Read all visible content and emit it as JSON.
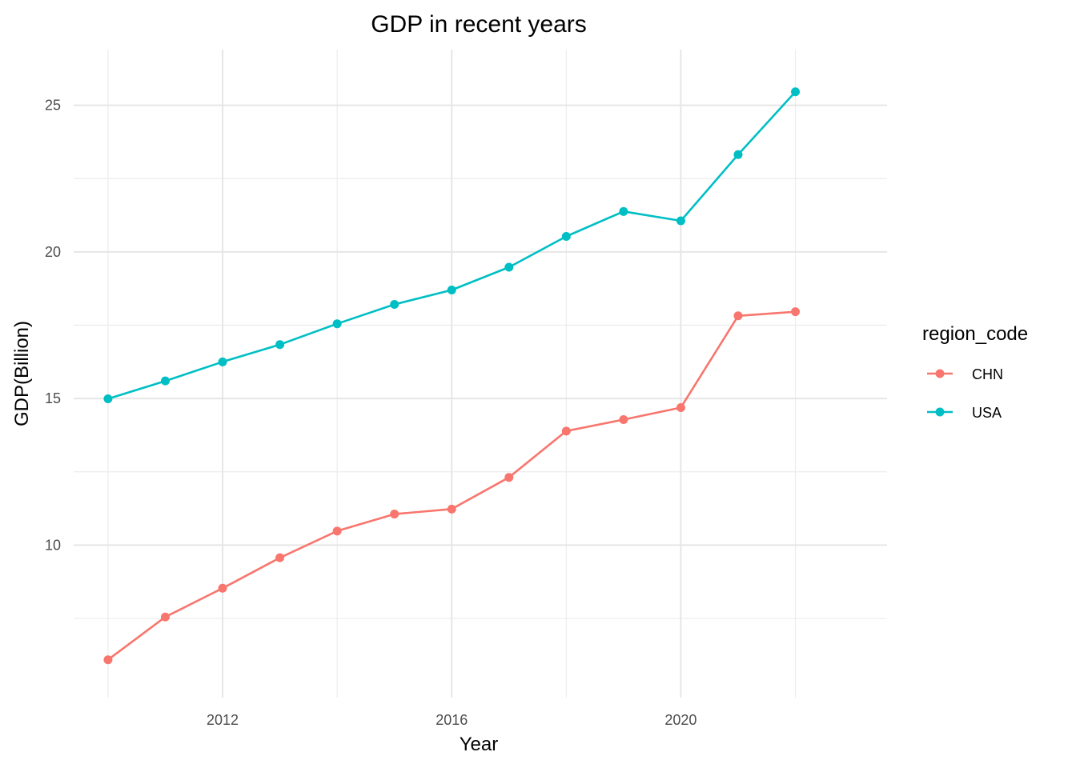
{
  "chart_data": {
    "type": "line",
    "title": "GDP in recent years",
    "xlabel": "Year",
    "ylabel": "GDP(Billion)",
    "x": [
      2010,
      2011,
      2012,
      2013,
      2014,
      2015,
      2016,
      2017,
      2018,
      2019,
      2020,
      2021,
      2022
    ],
    "series": [
      {
        "name": "CHN",
        "color": "#F8766D",
        "values": [
          6.09,
          7.55,
          8.53,
          9.57,
          10.48,
          11.06,
          11.23,
          12.31,
          13.89,
          14.28,
          14.69,
          17.82,
          17.96
        ]
      },
      {
        "name": "USA",
        "color": "#00BFC4",
        "values": [
          14.99,
          15.6,
          16.25,
          16.84,
          17.55,
          18.21,
          18.7,
          19.48,
          20.53,
          21.38,
          21.06,
          23.32,
          25.46
        ]
      }
    ],
    "xlim": [
      2009.4,
      2023.6
    ],
    "ylim": [
      4.8,
      26.9
    ],
    "x_major_ticks": [
      2012,
      2016,
      2020
    ],
    "x_tick_labels": [
      "2012",
      "2016",
      "2020"
    ],
    "x_minor_ticks": [
      2010,
      2014,
      2018,
      2022
    ],
    "y_major_ticks": [
      10,
      15,
      20,
      25
    ],
    "y_tick_labels": [
      "10",
      "15",
      "20",
      "25"
    ],
    "y_minor_ticks": [
      7.5,
      12.5,
      17.5,
      22.5
    ],
    "grid": true,
    "legend": {
      "title": "region_code",
      "placement": "right",
      "entries": [
        "CHN",
        "USA"
      ]
    }
  }
}
